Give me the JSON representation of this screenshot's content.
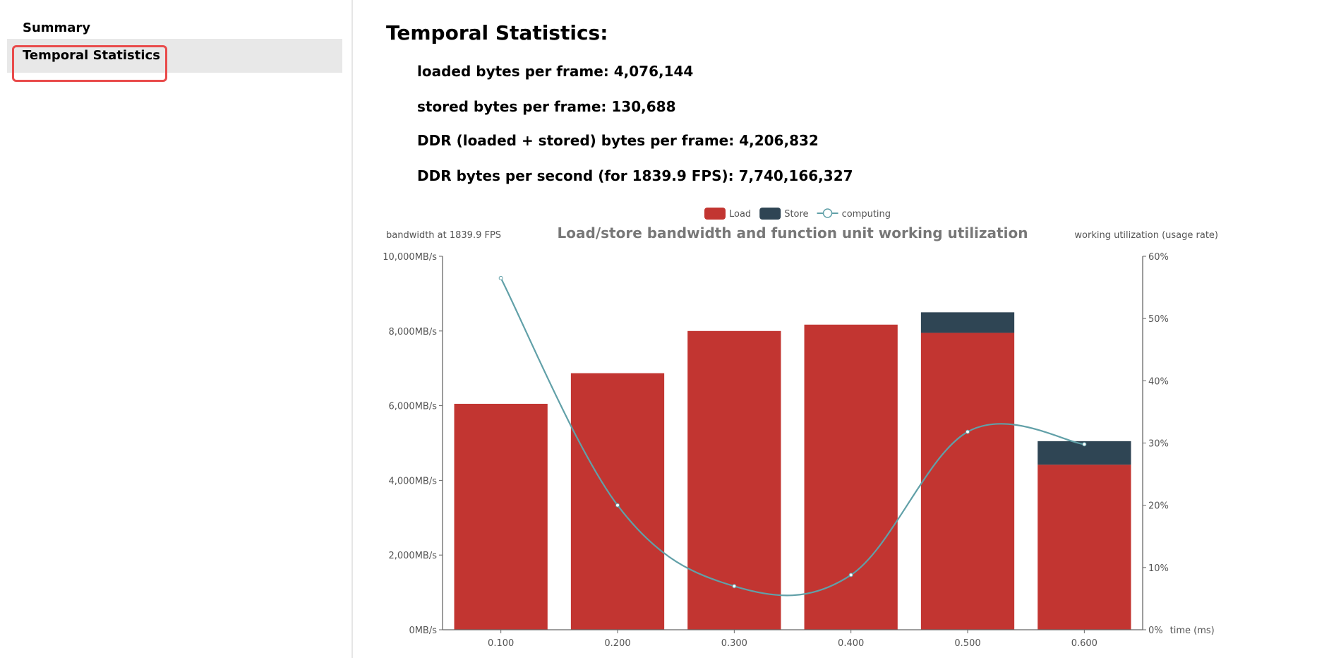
{
  "sidebar": {
    "items": [
      {
        "label": "Summary"
      },
      {
        "label": "Temporal Statistics"
      }
    ]
  },
  "main": {
    "title": "Temporal Statistics:",
    "stats": [
      "loaded bytes per frame: 4,076,144",
      "stored bytes per frame: 130,688",
      "DDR (loaded + stored) bytes per frame: 4,206,832",
      "DDR bytes per second (for 1839.9 FPS): 7,740,166,327"
    ]
  },
  "chart_data": {
    "type": "bar",
    "title": "Load/store bandwidth and function unit working utilization",
    "xlabel": "time (ms)",
    "ylabel": "bandwidth at 1839.9 FPS",
    "y2label": "working utilization (usage rate)",
    "categories": [
      "0.100",
      "0.200",
      "0.300",
      "0.400",
      "0.500",
      "0.600"
    ],
    "ylim": [
      0,
      10000
    ],
    "y2lim": [
      0,
      60
    ],
    "y_ticks": [
      "0MB/s",
      "2,000MB/s",
      "4,000MB/s",
      "6,000MB/s",
      "8,000MB/s",
      "10,000MB/s"
    ],
    "y2_ticks": [
      "0%",
      "10%",
      "20%",
      "30%",
      "40%",
      "50%",
      "60%"
    ],
    "legend": [
      "Load",
      "Store",
      "computing"
    ],
    "legend_position": "top-center",
    "series": [
      {
        "name": "Load",
        "type": "bar",
        "stack": "bw",
        "color": "#c23531",
        "values": [
          6050,
          6870,
          8000,
          8170,
          7950,
          4420
        ]
      },
      {
        "name": "Store",
        "type": "bar",
        "stack": "bw",
        "color": "#2f4554",
        "values": [
          0,
          0,
          0,
          0,
          550,
          630
        ]
      },
      {
        "name": "computing",
        "type": "line",
        "axis": "right",
        "color": "#61a0a8",
        "values": [
          56.5,
          20.0,
          7.0,
          8.8,
          31.8,
          29.8
        ]
      }
    ]
  }
}
